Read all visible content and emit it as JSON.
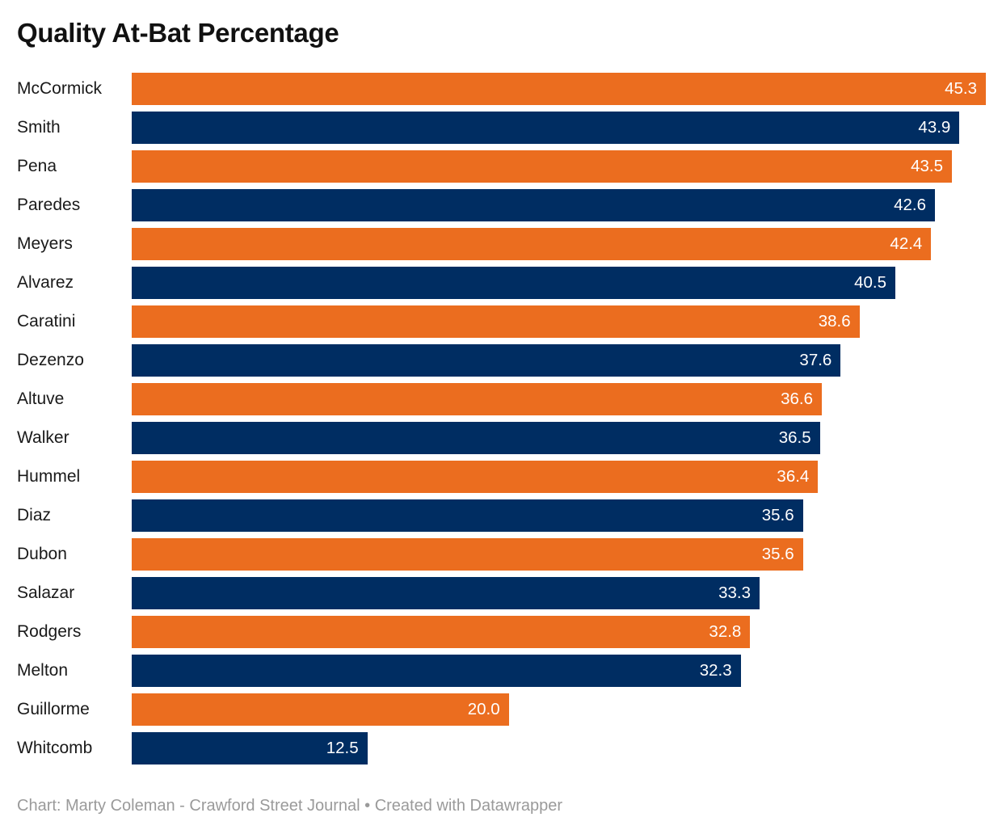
{
  "header": {
    "title": "Quality At-Bat Percentage"
  },
  "footer": {
    "text": "Chart: Marty Coleman - Crawford Street Journal • Created with Datawrapper"
  },
  "colors": {
    "accent_orange": "#EB6D1F",
    "accent_navy": "#002D62",
    "title_text": "#111111",
    "category_text": "#1A1A1A",
    "value_text": "#FFFFFF",
    "footer_text": "#9A9A9A",
    "background": "#FFFFFF"
  },
  "chart_data": {
    "type": "bar",
    "orientation": "horizontal",
    "title": "Quality At-Bat Percentage",
    "xlabel": "",
    "ylabel": "",
    "xlim": [
      0,
      45.3
    ],
    "grid": false,
    "legend": false,
    "value_labels": "inside-end, one decimal, white",
    "bar_color_pattern": [
      "#EB6D1F",
      "#002D62"
    ],
    "categories": [
      "McCormick",
      "Smith",
      "Pena",
      "Paredes",
      "Meyers",
      "Alvarez",
      "Caratini",
      "Dezenzo",
      "Altuve",
      "Walker",
      "Hummel",
      "Diaz",
      "Dubon",
      "Salazar",
      "Rodgers",
      "Melton",
      "Guillorme",
      "Whitcomb"
    ],
    "values": [
      45.3,
      43.9,
      43.5,
      42.6,
      42.4,
      40.5,
      38.6,
      37.6,
      36.6,
      36.5,
      36.4,
      35.6,
      35.6,
      33.3,
      32.8,
      32.3,
      20.0,
      12.5
    ]
  }
}
